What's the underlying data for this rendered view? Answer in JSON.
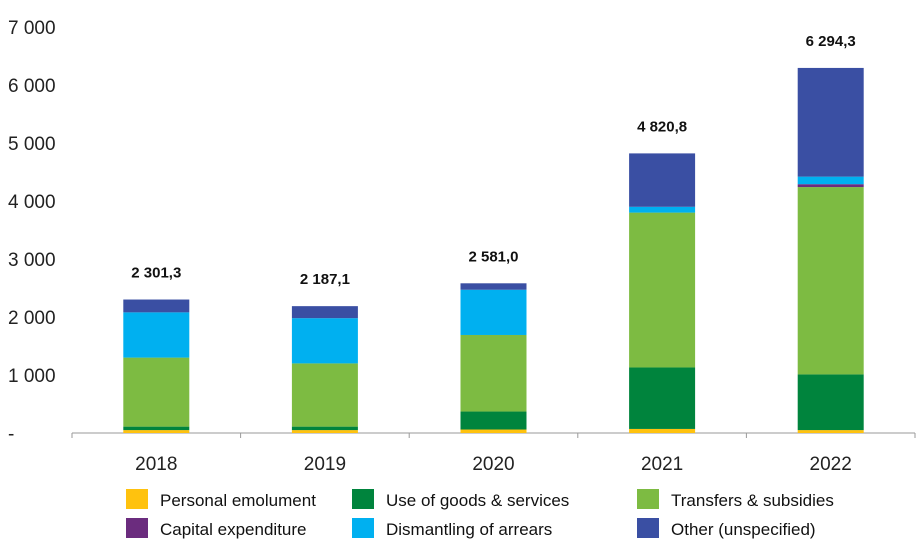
{
  "chart_data": {
    "type": "bar",
    "stacked": true,
    "title": "",
    "xlabel": "",
    "ylabel": "",
    "categories": [
      "2018",
      "2019",
      "2020",
      "2021",
      "2022"
    ],
    "ylim": [
      0,
      7000
    ],
    "yticks": [
      0,
      1000,
      2000,
      3000,
      4000,
      5000,
      6000,
      7000
    ],
    "ytick_labels": [
      "-",
      "1 000",
      "2 000",
      "3 000",
      "4 000",
      "5 000",
      "6 000",
      "7 000"
    ],
    "totals": [
      2301.3,
      2187.1,
      2581.0,
      4820.8,
      6294.3
    ],
    "total_labels": [
      "2 301,3",
      "2 187,1",
      "2 581,0",
      "4 820,8",
      "6 294,3"
    ],
    "legend_position": "bottom",
    "grid": false,
    "series": [
      {
        "name": "Personal emolument",
        "color": "#FFC20E",
        "values": [
          50,
          50,
          60,
          70,
          50
        ]
      },
      {
        "name": "Use of goods & services",
        "color": "#00843D",
        "values": [
          60,
          60,
          310,
          1060,
          960
        ]
      },
      {
        "name": "Transfers & subsidies",
        "color": "#7DBB42",
        "values": [
          1190,
          1090,
          1320,
          2670,
          3230
        ]
      },
      {
        "name": "Capital expenditure",
        "color": "#6B2C7E",
        "values": [
          0,
          0,
          0,
          0,
          50
        ]
      },
      {
        "name": "Dismantling of arrears",
        "color": "#00B0F0",
        "values": [
          780,
          780,
          780,
          100,
          130
        ]
      },
      {
        "name": "Other (unspecified)",
        "color": "#3A4FA3",
        "values": [
          221.3,
          207.1,
          111.0,
          920.8,
          1874.3
        ]
      }
    ]
  }
}
